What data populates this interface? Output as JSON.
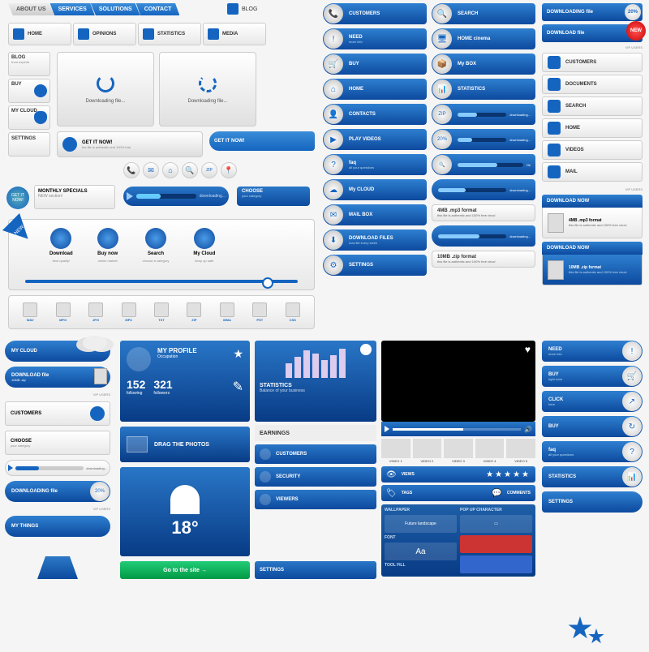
{
  "colors": {
    "primary": "#1565c0",
    "primary_light": "#3a8dd8",
    "primary_dark": "#0d4a9e",
    "grey_light": "#e8e8e8",
    "grey": "#cccccc",
    "text": "#333333",
    "accent_red": "#cc0000",
    "accent_green": "#22cc77"
  },
  "top_nav": {
    "items": [
      "ABOUT US",
      "SERVICES",
      "SOLUTIONS",
      "CONTACT"
    ],
    "blog": "BLOG"
  },
  "icon_nav": [
    {
      "label": "HOME",
      "sub": ""
    },
    {
      "label": "OPINIONS",
      "sub": ""
    },
    {
      "label": "STATISTICS",
      "sub": ""
    },
    {
      "label": "MEDIA",
      "sub": ""
    }
  ],
  "side_btns": [
    {
      "label": "BLOG",
      "sub": "from experts"
    },
    {
      "label": "BUY",
      "sub": ""
    },
    {
      "label": "MY CLOUD",
      "sub": ""
    },
    {
      "label": "SETTINGS",
      "sub": ""
    }
  ],
  "monthly": {
    "label": "MONTHLY SPECIALS",
    "sub": "NEW section!"
  },
  "get_it_badge": "GET IT NOW!",
  "dl_panels": {
    "a_text": "Downloading file...",
    "b_text": "Downloading file...",
    "b_pct": "20"
  },
  "cta_grey": {
    "label": "GET IT NOW!",
    "sub": "the file is authentic and 100% trial"
  },
  "cta_blue": {
    "label": "GET IT NOW!"
  },
  "circ_icons": [
    "📞",
    "✉",
    "⌂",
    "🔍",
    "ZIP",
    "📍"
  ],
  "blue_prog": {
    "text": "downloading..."
  },
  "choose": {
    "label": "CHOOSE",
    "sub": "your category"
  },
  "ribbon_new": "NEW",
  "ribbon_acts": [
    {
      "label": "Download",
      "sub": "best quality!"
    },
    {
      "label": "Buy now",
      "sub": "online market"
    },
    {
      "label": "Search",
      "sub": "choose a category"
    },
    {
      "label": "My Cloud",
      "sub": "keep up safe"
    }
  ],
  "filetypes": [
    "WAV",
    "MPG",
    "JPG",
    "MP3",
    "TXT",
    "ZIP",
    "WMA",
    "PST",
    "CSS"
  ],
  "pill_col1": [
    {
      "icon": "📞",
      "label": "CUSTOMERS",
      "sub": ""
    },
    {
      "icon": "!",
      "label": "NEED",
      "sub": "more info"
    },
    {
      "icon": "🛒",
      "label": "BUY",
      "sub": ""
    },
    {
      "icon": "⌂",
      "label": "HOME",
      "sub": ""
    },
    {
      "icon": "👤",
      "label": "CONTACTS",
      "sub": ""
    },
    {
      "icon": "▶",
      "label": "PLAY VIDEOS",
      "sub": ""
    },
    {
      "icon": "?",
      "label": "faq",
      "sub": "all your questions"
    },
    {
      "icon": "☁",
      "label": "My CLOUD",
      "sub": ""
    },
    {
      "icon": "✉",
      "label": "MAIL BOX",
      "sub": ""
    },
    {
      "icon": "⬇",
      "label": "DOWNLOAD FILES",
      "sub": "now file every week"
    },
    {
      "icon": "⚙",
      "label": "SETTINGS",
      "sub": ""
    }
  ],
  "pill_col2": [
    {
      "icon": "🔍",
      "label": "SEARCH",
      "sub": ""
    },
    {
      "icon": "🖥",
      "label": "HOME cinema",
      "sub": ""
    },
    {
      "icon": "📦",
      "label": "My BOX",
      "sub": ""
    },
    {
      "icon": "📊",
      "label": "STATISTICS",
      "sub": ""
    },
    {
      "icon": "ZIP",
      "label": "",
      "sub": "",
      "prog": 40,
      "ptxt": "downloading..."
    },
    {
      "icon": "20%",
      "label": "",
      "sub": "",
      "prog": 30,
      "ptxt": "downloading..."
    },
    {
      "icon": "🔍",
      "label": "",
      "sub": "",
      "prog": 60,
      "ptxt": "Ok"
    }
  ],
  "dl_info1": {
    "t": "4MB .mp3 format",
    "s": "this file is authentic and 100% free virus!",
    "prog_txt": "downloading..."
  },
  "dl_info2": {
    "t": "10MB .zip format",
    "s": "this file is authentic and 100% free virus!",
    "prog_txt": "downloading..."
  },
  "right_strip": {
    "dl_file": "DOWNLOADING file",
    "pct": "20%",
    "dl_file2": "DOWNLOAD file",
    "new_badge": "NEW",
    "vip_sub": "VIP USERS"
  },
  "white_rows": [
    {
      "icon": "👤",
      "label": "CUSTOMERS"
    },
    {
      "icon": "📄",
      "label": "DOCUMENTS"
    },
    {
      "icon": "👆",
      "label": "SEARCH"
    },
    {
      "icon": "⌂",
      "label": "HOME"
    },
    {
      "icon": "📹",
      "label": "VIDEOS"
    },
    {
      "icon": "✉",
      "label": "MAIL"
    }
  ],
  "dl_now": {
    "hdr": "DOWNLOAD NOW",
    "t1": "4MB .mp3 format",
    "s1": "this file is authentic and 100% free virus!",
    "t2": "10MB .zip format",
    "s2": "this file is authentic and 100% free virus!"
  },
  "left_bot": {
    "mycloud": "MY CLOUD",
    "dlfile": {
      "label": "DOWNLOAD file",
      "sub": "10MB .zip"
    },
    "customers": "CUSTOMERS",
    "choose": {
      "label": "CHOOSE",
      "sub": "your category"
    },
    "prog_txt": "downloading...",
    "dling": {
      "label": "DOWNLOADING file",
      "pct": "20%"
    },
    "mythings": "MY THINGS"
  },
  "dash": {
    "profile": {
      "title": "MY PROFILE",
      "occ": "Occupation",
      "following_n": "152",
      "following_l": "following",
      "followers_n": "321",
      "followers_l": "followers"
    },
    "drag": "DRAG THE PHOTOS",
    "weather": {
      "temp": "18°"
    },
    "stats": {
      "title": "STATISTICS",
      "sub": "Balance of your business",
      "bars": [
        18,
        26,
        34,
        30,
        22,
        28,
        36
      ]
    },
    "earnings": "EARNINGS",
    "list": [
      {
        "label": "CUSTOMERS"
      },
      {
        "label": "SECURITY"
      },
      {
        "label": "VIEWERS"
      }
    ],
    "go_site": "Go to the site →",
    "settings_bar": "SETTINGS"
  },
  "video": {
    "thumbs": [
      "VIDEO 1",
      "VIDEO 2",
      "VIDEO 3",
      "VIDEO 4",
      "VIDEO 5"
    ],
    "meta": [
      {
        "icon": "👁",
        "label": "VIEWS"
      },
      {
        "icon": "🏷",
        "label": "TAGS"
      },
      {
        "icon": "💬",
        "label": "COMMENTS"
      }
    ],
    "settings": {
      "col1_hdr": "WALLPAPER",
      "col1_items": [
        "Future landscape"
      ],
      "col2_hdr": "POP UP CHARACTER",
      "font_hdr": "FONT",
      "font": "Aa",
      "tool_hdr": "TOOL FILL"
    }
  },
  "right_bot": [
    {
      "label": "NEED",
      "sub": "more info",
      "icon": "!"
    },
    {
      "label": "BUY",
      "sub": "right now!",
      "icon": "🛒"
    },
    {
      "label": "CLICK",
      "sub": "here",
      "icon": "↗"
    },
    {
      "label": "BUY",
      "sub": "",
      "icon": "↻"
    },
    {
      "label": "faq",
      "sub": "all your questions",
      "icon": "?"
    },
    {
      "label": "STATISTICS",
      "sub": "",
      "icon": "📊"
    },
    {
      "label": "SETTINGS",
      "sub": "",
      "icon": ""
    }
  ]
}
